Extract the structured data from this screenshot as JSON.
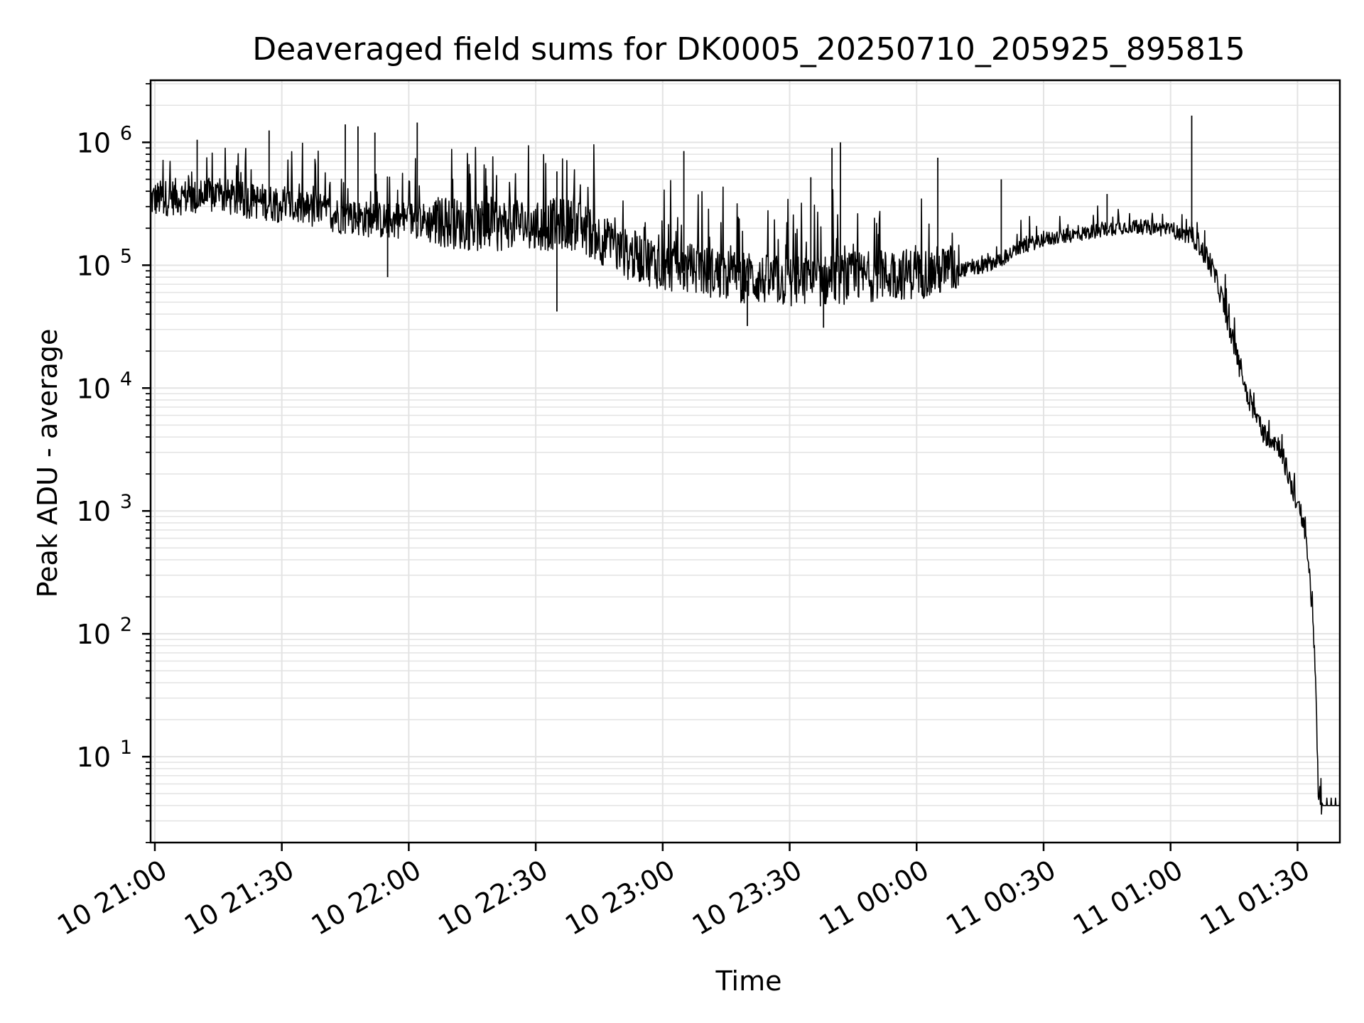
{
  "chart_data": {
    "type": "line",
    "title": "Deaveraged field sums for DK0005_20250710_205925_895815",
    "xlabel": "Time",
    "ylabel": "Peak ADU - average",
    "x_ticks": [
      {
        "time": "2025-07-10 21:00",
        "label": "10 21:00"
      },
      {
        "time": "2025-07-10 21:30",
        "label": "10 21:30"
      },
      {
        "time": "2025-07-10 22:00",
        "label": "10 22:00"
      },
      {
        "time": "2025-07-10 22:30",
        "label": "10 22:30"
      },
      {
        "time": "2025-07-10 23:00",
        "label": "10 23:00"
      },
      {
        "time": "2025-07-10 23:30",
        "label": "10 23:30"
      },
      {
        "time": "2025-07-11 00:00",
        "label": "11 00:00"
      },
      {
        "time": "2025-07-11 00:30",
        "label": "11 00:30"
      },
      {
        "time": "2025-07-11 01:00",
        "label": "11 01:00"
      },
      {
        "time": "2025-07-11 01:30",
        "label": "11 01:30"
      }
    ],
    "y_ticks": [
      {
        "value": 10,
        "base": "10",
        "exp": "1"
      },
      {
        "value": 100,
        "base": "10",
        "exp": "2"
      },
      {
        "value": 1000,
        "base": "10",
        "exp": "3"
      },
      {
        "value": 10000,
        "base": "10",
        "exp": "4"
      },
      {
        "value": 100000,
        "base": "10",
        "exp": "5"
      },
      {
        "value": 1000000,
        "base": "10",
        "exp": "6"
      }
    ],
    "xlim": [
      "2025-07-10 20:59",
      "2025-07-11 01:40"
    ],
    "ylim": [
      2,
      3200000
    ],
    "yscale": "log",
    "grid": true,
    "line_color": "#000000",
    "grid_color": "#e3e3e3",
    "series": [
      {
        "x": [
          "2025-07-10 20:59",
          "2025-07-10 21:05",
          "2025-07-10 21:10",
          "2025-07-10 21:15",
          "2025-07-10 21:20",
          "2025-07-10 21:25",
          "2025-07-10 21:30",
          "2025-07-10 21:35",
          "2025-07-10 21:40",
          "2025-07-10 21:45",
          "2025-07-10 21:50",
          "2025-07-10 21:55",
          "2025-07-10 22:00",
          "2025-07-10 22:05",
          "2025-07-10 22:10",
          "2025-07-10 22:15",
          "2025-07-10 22:20",
          "2025-07-10 22:25",
          "2025-07-10 22:30",
          "2025-07-10 22:35",
          "2025-07-10 22:40",
          "2025-07-10 22:45",
          "2025-07-10 22:50",
          "2025-07-10 22:55",
          "2025-07-10 23:00",
          "2025-07-10 23:05",
          "2025-07-10 23:10",
          "2025-07-10 23:15",
          "2025-07-10 23:20",
          "2025-07-10 23:25",
          "2025-07-10 23:30",
          "2025-07-10 23:35",
          "2025-07-10 23:40",
          "2025-07-10 23:45",
          "2025-07-10 23:50",
          "2025-07-10 23:55",
          "2025-07-11 00:00",
          "2025-07-11 00:05",
          "2025-07-11 00:10",
          "2025-07-11 00:15",
          "2025-07-11 00:20",
          "2025-07-11 00:25",
          "2025-07-11 00:30",
          "2025-07-11 00:35",
          "2025-07-11 00:40",
          "2025-07-11 00:45",
          "2025-07-11 00:50",
          "2025-07-11 00:55",
          "2025-07-11 01:00",
          "2025-07-11 01:03",
          "2025-07-11 01:06",
          "2025-07-11 01:08",
          "2025-07-11 01:10",
          "2025-07-11 01:12",
          "2025-07-11 01:14",
          "2025-07-11 01:16",
          "2025-07-11 01:18",
          "2025-07-11 01:20",
          "2025-07-11 01:22",
          "2025-07-11 01:24",
          "2025-07-11 01:26",
          "2025-07-11 01:28",
          "2025-07-11 01:30",
          "2025-07-11 01:32",
          "2025-07-11 01:33",
          "2025-07-11 01:34",
          "2025-07-11 01:35",
          "2025-07-11 01:36",
          "2025-07-11 01:37",
          "2025-07-11 01:38",
          "2025-07-11 01:40"
        ],
        "values": [
          330000,
          350000,
          340000,
          360000,
          330000,
          320000,
          300000,
          280000,
          260000,
          240000,
          230000,
          220000,
          230000,
          220000,
          210000,
          200000,
          190000,
          220000,
          190000,
          210000,
          200000,
          160000,
          120000,
          110000,
          95000,
          90000,
          85000,
          80000,
          75000,
          72000,
          70000,
          70000,
          72000,
          75000,
          78000,
          80000,
          82000,
          85000,
          90000,
          95000,
          110000,
          140000,
          160000,
          170000,
          180000,
          195000,
          205000,
          200000,
          190000,
          175000,
          160000,
          120000,
          90000,
          55000,
          30000,
          16000,
          9000,
          6000,
          4200,
          3800,
          3200,
          1800,
          1100,
          600,
          250,
          80,
          4,
          4,
          4,
          4,
          4
        ],
        "spikes": {
          "x": [
            "2025-07-10 21:10",
            "2025-07-10 21:27",
            "2025-07-10 21:45",
            "2025-07-10 21:48",
            "2025-07-10 21:52",
            "2025-07-10 22:02",
            "2025-07-10 22:35",
            "2025-07-10 23:05",
            "2025-07-10 23:35",
            "2025-07-10 23:40",
            "2025-07-10 23:42",
            "2025-07-11 00:05",
            "2025-07-11 00:20",
            "2025-07-11 00:45",
            "2025-07-11 01:05"
          ],
          "values": [
            1050000,
            1250000,
            1400000,
            1350000,
            1200000,
            1450000,
            580000,
            850000,
            520000,
            900000,
            1000000,
            750000,
            500000,
            380000,
            1650000
          ]
        },
        "floor_dip": {
          "x": [
            "2025-07-10 21:55",
            "2025-07-10 22:35",
            "2025-07-10 23:20",
            "2025-07-10 23:38"
          ],
          "values": [
            80000,
            42000,
            32000,
            31000
          ]
        }
      }
    ]
  }
}
